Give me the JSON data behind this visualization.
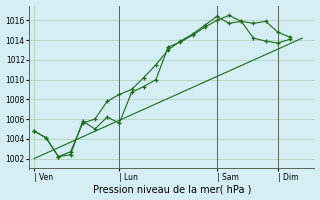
{
  "background_color": "#d4eef4",
  "grid_color": "#b0ccb0",
  "line_color": "#1a6b1a",
  "xlabel": "Pression niveau de la mer( hPa )",
  "ylim": [
    1001.0,
    1017.5
  ],
  "yticks": [
    1002,
    1004,
    1006,
    1008,
    1010,
    1012,
    1014,
    1016
  ],
  "day_labels": [
    "| Ven",
    "| Lun",
    "| Sam",
    "| Dim"
  ],
  "day_positions": [
    0,
    3.5,
    7.5,
    10.0
  ],
  "xlim": [
    -0.2,
    11.5
  ],
  "series1_x": [
    0.0,
    0.5,
    1.0,
    1.5,
    2.0,
    2.5,
    3.0,
    3.5,
    4.0,
    4.5,
    5.0,
    5.5,
    6.0,
    6.5,
    7.0,
    7.5,
    8.0,
    8.5,
    9.0,
    9.5,
    10.0,
    10.5
  ],
  "series1_y": [
    1004.8,
    1004.1,
    1002.2,
    1002.4,
    1005.8,
    1005.0,
    1006.2,
    1005.6,
    1008.7,
    1009.3,
    1010.0,
    1013.3,
    1013.8,
    1014.5,
    1015.3,
    1016.0,
    1016.5,
    1015.9,
    1015.7,
    1015.9,
    1014.8,
    1014.3
  ],
  "series2_x": [
    0.0,
    0.5,
    1.0,
    1.5,
    2.0,
    2.5,
    3.0,
    3.5,
    4.0,
    4.5,
    5.0,
    5.5,
    6.0,
    6.5,
    7.0,
    7.5,
    8.0,
    8.5,
    9.0,
    9.5,
    10.0,
    10.5
  ],
  "series2_y": [
    1004.8,
    1004.1,
    1002.2,
    1002.7,
    1005.6,
    1006.0,
    1007.8,
    1008.5,
    1009.0,
    1010.2,
    1011.5,
    1013.0,
    1013.9,
    1014.6,
    1015.5,
    1016.4,
    1015.7,
    1015.9,
    1014.2,
    1013.9,
    1013.7,
    1014.1
  ],
  "series3_x": [
    0.0,
    11.0
  ],
  "series3_y": [
    1002.0,
    1014.2
  ],
  "vline_positions": [
    3.5,
    7.5,
    10.0
  ],
  "vline_color": "#556655",
  "spine_color": "#556655",
  "tick_fontsize": 5.5,
  "xlabel_fontsize": 7.0
}
